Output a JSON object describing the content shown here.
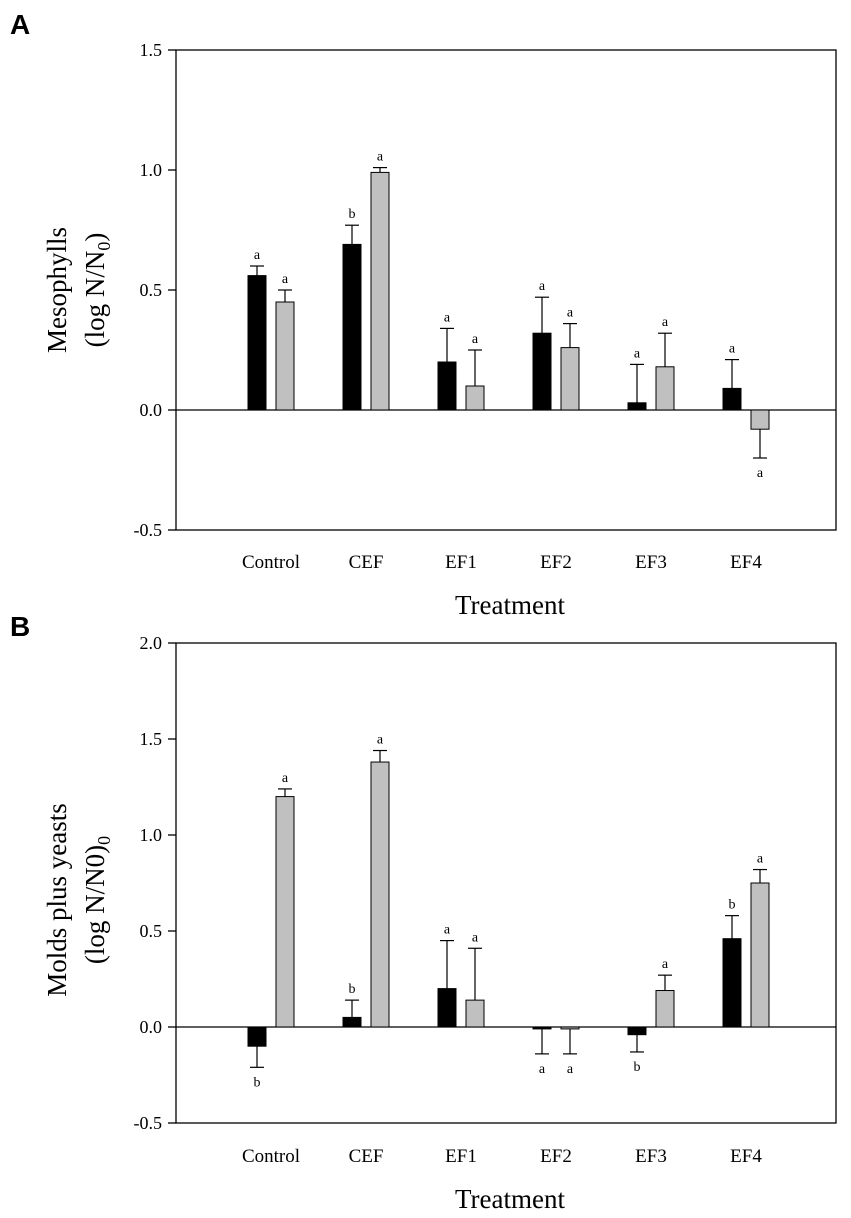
{
  "chart_data": [
    {
      "type": "bar",
      "panel_label": "A",
      "categories": [
        "Control",
        "CEF",
        "EF1",
        "EF2",
        "EF3",
        "EF4"
      ],
      "xlabel": "Treatment",
      "ylabel_line1": "Mesophylls",
      "ylabel_line2_main": "(log N/N",
      "ylabel_line2_sub": "0",
      "ylabel_line2_end": ")",
      "ylim": [
        -0.5,
        1.5
      ],
      "yticks": [
        -0.5,
        0.0,
        0.5,
        1.0,
        1.5
      ],
      "ytick_labels": [
        "-0.5",
        "0.0",
        "0.5",
        "1.0",
        "1.5"
      ],
      "series": [
        {
          "name": "black",
          "color": "#000000",
          "values": [
            0.56,
            0.69,
            0.2,
            0.32,
            0.03,
            0.09
          ],
          "errors": [
            0.04,
            0.08,
            0.14,
            0.15,
            0.16,
            0.12
          ],
          "labels": [
            "a",
            "b",
            "a",
            "a",
            "a",
            "a"
          ]
        },
        {
          "name": "grey",
          "color": "#c0c0c0",
          "values": [
            0.45,
            0.99,
            0.1,
            0.26,
            0.18,
            -0.08
          ],
          "errors": [
            0.05,
            0.02,
            0.15,
            0.1,
            0.14,
            0.12
          ],
          "labels": [
            "a",
            "a",
            "a",
            "a",
            "a",
            "a"
          ]
        }
      ]
    },
    {
      "type": "bar",
      "panel_label": "B",
      "categories": [
        "Control",
        "CEF",
        "EF1",
        "EF2",
        "EF3",
        "EF4"
      ],
      "xlabel": "Treatment",
      "ylabel_line1": "Molds plus yeasts",
      "ylabel_line2_main": "(log N/N0)",
      "ylabel_line2_sub": "0",
      "ylabel_line2_end": "",
      "ylim": [
        -0.5,
        2.0
      ],
      "yticks": [
        -0.5,
        0.0,
        0.5,
        1.0,
        1.5,
        2.0
      ],
      "ytick_labels": [
        "-0.5",
        "0.0",
        "0.5",
        "1.0",
        "1.5",
        "2.0"
      ],
      "series": [
        {
          "name": "black",
          "color": "#000000",
          "values": [
            -0.1,
            0.05,
            0.2,
            -0.01,
            -0.04,
            0.46
          ],
          "errors": [
            0.11,
            0.09,
            0.25,
            0.13,
            0.09,
            0.12
          ],
          "labels": [
            "b",
            "b",
            "a",
            "a",
            "b",
            "b"
          ]
        },
        {
          "name": "grey",
          "color": "#c0c0c0",
          "values": [
            1.2,
            1.38,
            0.14,
            -0.01,
            0.19,
            0.75
          ],
          "errors": [
            0.04,
            0.06,
            0.27,
            0.13,
            0.08,
            0.07
          ],
          "labels": [
            "a",
            "a",
            "a",
            "a",
            "a",
            "a"
          ]
        }
      ]
    }
  ]
}
